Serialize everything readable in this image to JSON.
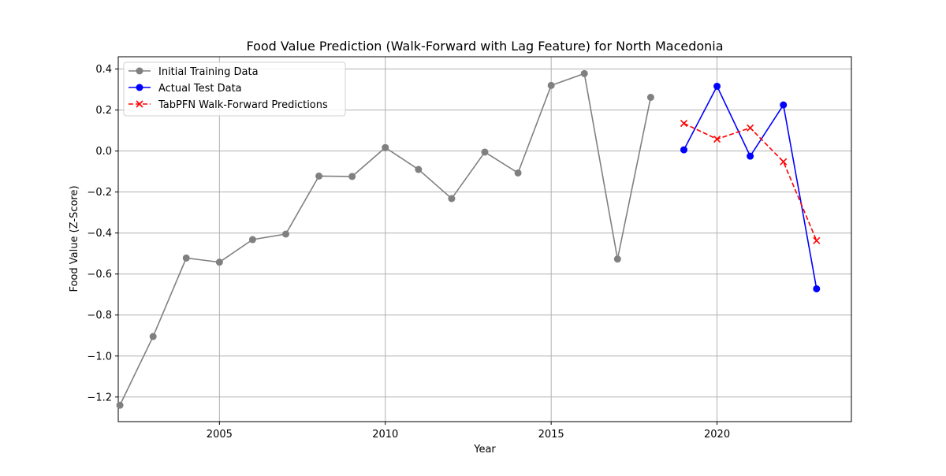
{
  "chart_data": {
    "type": "line",
    "title": "Food Value Prediction (Walk-Forward with Lag Feature) for North Macedonia",
    "xlabel": "Year",
    "ylabel": "Food Value (Z-Score)",
    "xlim": [
      2001.95,
      2024.05
    ],
    "ylim": [
      -1.32,
      0.46
    ],
    "x_ticks": [
      2005,
      2010,
      2015,
      2020
    ],
    "x_tick_labels": [
      "2005",
      "2010",
      "2015",
      "2020"
    ],
    "y_ticks": [
      -1.2,
      -1.0,
      -0.8,
      -0.6,
      -0.4,
      -0.2,
      0.0,
      0.2,
      0.4
    ],
    "y_tick_labels": [
      "−1.2",
      "−1.0",
      "−0.8",
      "−0.6",
      "−0.4",
      "−0.2",
      "0.0",
      "0.2",
      "0.4"
    ],
    "grid": true,
    "legend_position": "top-left",
    "series": [
      {
        "name": "Initial Training Data",
        "color": "#808080",
        "line_style": "solid",
        "marker": "circle",
        "x": [
          2002,
          2003,
          2004,
          2005,
          2006,
          2007,
          2008,
          2009,
          2010,
          2011,
          2012,
          2013,
          2014,
          2015,
          2016,
          2017,
          2018
        ],
        "y": [
          -1.24,
          -0.905,
          -0.522,
          -0.542,
          -0.432,
          -0.405,
          -0.122,
          -0.124,
          0.017,
          -0.09,
          -0.232,
          -0.005,
          -0.107,
          0.32,
          0.378,
          -0.527,
          0.262
        ]
      },
      {
        "name": "Actual Test Data",
        "color": "#0000ff",
        "line_style": "solid",
        "marker": "circle",
        "x": [
          2019,
          2020,
          2021,
          2022,
          2023
        ],
        "y": [
          0.006,
          0.316,
          -0.025,
          0.225,
          -0.672
        ]
      },
      {
        "name": "TabPFN Walk-Forward Predictions",
        "color": "#ff0000",
        "line_style": "dashed",
        "marker": "x",
        "x": [
          2019,
          2020,
          2021,
          2022,
          2023
        ],
        "y": [
          0.135,
          0.058,
          0.113,
          -0.052,
          -0.437
        ]
      }
    ]
  }
}
